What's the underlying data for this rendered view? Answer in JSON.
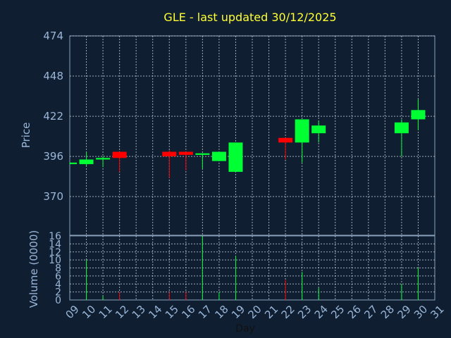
{
  "chart_data": {
    "type": "candlestick",
    "title": "GLE - last updated 30/12/2025",
    "xlabel": "Day",
    "ylabel_price": "Price",
    "ylabel_volume": "Volume (0000)",
    "x_ticks": [
      "09",
      "10",
      "11",
      "12",
      "13",
      "14",
      "15",
      "16",
      "17",
      "18",
      "19",
      "20",
      "21",
      "22",
      "23",
      "24",
      "25",
      "26",
      "27",
      "28",
      "29",
      "30",
      "31"
    ],
    "price_ticks": [
      370,
      396,
      422,
      448,
      474
    ],
    "price_range": [
      345,
      474
    ],
    "volume_ticks": [
      0,
      2,
      4,
      6,
      8,
      10,
      12,
      14,
      16
    ],
    "volume_range": [
      0,
      16
    ],
    "grid": true,
    "up_color": "#00ff33",
    "down_color": "#ff0000",
    "candles": [
      {
        "day": "09",
        "open": 391,
        "close": 392,
        "high": 392,
        "low": 391,
        "volume": 0
      },
      {
        "day": "10",
        "open": 391,
        "close": 394,
        "high": 399,
        "low": 390,
        "volume": 10
      },
      {
        "day": "11",
        "open": 394,
        "close": 395,
        "high": 396,
        "low": 389,
        "volume": 1
      },
      {
        "day": "12",
        "open": 399,
        "close": 395,
        "high": 399,
        "low": 386,
        "volume": 2
      },
      {
        "day": "15",
        "open": 399,
        "close": 396,
        "high": 400,
        "low": 382,
        "volume": 2
      },
      {
        "day": "16",
        "open": 399,
        "close": 397,
        "high": 399,
        "low": 387,
        "volume": 2
      },
      {
        "day": "17",
        "open": 397,
        "close": 398,
        "high": 398,
        "low": 388,
        "volume": 16
      },
      {
        "day": "18",
        "open": 393,
        "close": 399,
        "high": 399,
        "low": 393,
        "volume": 2
      },
      {
        "day": "19",
        "open": 386,
        "close": 405,
        "high": 405,
        "low": 386,
        "volume": 11
      },
      {
        "day": "22",
        "open": 408,
        "close": 405,
        "high": 408,
        "low": 394,
        "volume": 5
      },
      {
        "day": "23",
        "open": 405,
        "close": 420,
        "high": 420,
        "low": 392,
        "volume": 7
      },
      {
        "day": "24",
        "open": 411,
        "close": 416,
        "high": 419,
        "low": 405,
        "volume": 3
      },
      {
        "day": "29",
        "open": 411,
        "close": 418,
        "high": 420,
        "low": 396,
        "volume": 4
      },
      {
        "day": "30",
        "open": 420,
        "close": 426,
        "high": 433,
        "low": 413,
        "volume": 8
      }
    ]
  }
}
